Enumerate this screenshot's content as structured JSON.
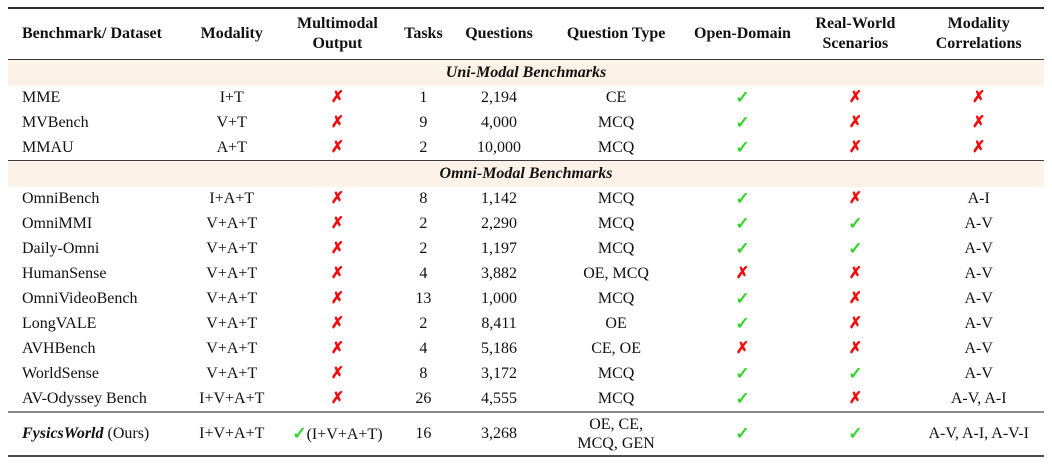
{
  "colors": {
    "check": "#33d42c",
    "cross": "#f40b0b",
    "section_bg": "#fcf2e7"
  },
  "table": {
    "columns": [
      "Benchmark/ Dataset",
      "Modality",
      "Multimodal\nOutput",
      "Tasks",
      "Questions",
      "Question Type",
      "Open-Domain",
      "Real-World\nScenarios",
      "Modality\nCorrelations"
    ],
    "sections": [
      {
        "title": "Uni-Modal Benchmarks",
        "rows": [
          {
            "name": "MME",
            "cells": [
              "I+T",
              "✗",
              "1",
              "2,194",
              "CE",
              "✓",
              "✗",
              "✗"
            ]
          },
          {
            "name": "MVBench",
            "cells": [
              "V+T",
              "✗",
              "9",
              "4,000",
              "MCQ",
              "✓",
              "✗",
              "✗"
            ]
          },
          {
            "name": "MMAU",
            "cells": [
              "A+T",
              "✗",
              "2",
              "10,000",
              "MCQ",
              "✓",
              "✗",
              "✗"
            ]
          }
        ]
      },
      {
        "title": "Omni-Modal Benchmarks",
        "rows": [
          {
            "name": "OmniBench",
            "cells": [
              "I+A+T",
              "✗",
              "8",
              "1,142",
              "MCQ",
              "✓",
              "✗",
              "A-I"
            ]
          },
          {
            "name": "OmniMMI",
            "cells": [
              "V+A+T",
              "✗",
              "2",
              "2,290",
              "MCQ",
              "✓",
              "✓",
              "A-V"
            ]
          },
          {
            "name": "Daily-Omni",
            "cells": [
              "V+A+T",
              "✗",
              "2",
              "1,197",
              "MCQ",
              "✓",
              "✓",
              "A-V"
            ]
          },
          {
            "name": "HumanSense",
            "cells": [
              "V+A+T",
              "✗",
              "4",
              "3,882",
              "OE, MCQ",
              "✗",
              "✗",
              "A-V"
            ]
          },
          {
            "name": "OmniVideoBench",
            "cells": [
              "V+A+T",
              "✗",
              "13",
              "1,000",
              "MCQ",
              "✓",
              "✗",
              "A-V"
            ]
          },
          {
            "name": "LongVALE",
            "cells": [
              "V+A+T",
              "✗",
              "2",
              "8,411",
              "OE",
              "✓",
              "✗",
              "A-V"
            ]
          },
          {
            "name": "AVHBench",
            "cells": [
              "V+A+T",
              "✗",
              "4",
              "5,186",
              "CE, OE",
              "✗",
              "✗",
              "A-V"
            ]
          },
          {
            "name": "WorldSense",
            "cells": [
              "V+A+T",
              "✗",
              "8",
              "3,172",
              "MCQ",
              "✓",
              "✓",
              "A-V"
            ]
          },
          {
            "name": "AV-Odyssey Bench",
            "cells": [
              "I+V+A+T",
              "✗",
              "26",
              "4,555",
              "MCQ",
              "✓",
              "✗",
              "A-V, A-I"
            ]
          }
        ]
      }
    ],
    "final_row": {
      "name_emphasis": "FysicsWorld",
      "name_suffix": " (Ours)",
      "cells": [
        "I+V+A+T",
        "✓(I+V+A+T)",
        "16",
        "3,268",
        "OE, CE,\nMCQ, GEN",
        "✓",
        "✓",
        "A-V, A-I, A-V-I"
      ]
    }
  }
}
